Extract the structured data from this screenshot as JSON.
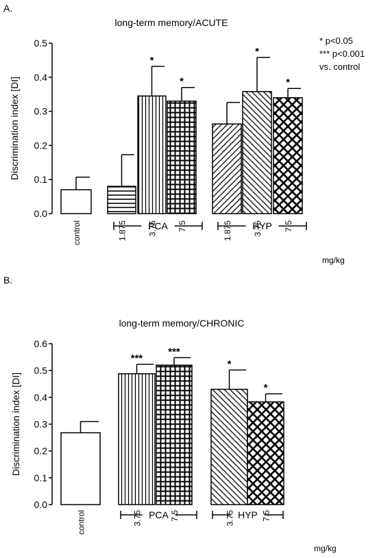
{
  "chart_data": [
    {
      "panel_label": "A.",
      "type": "bar",
      "title": "long-term memory/ACUTE",
      "ylabel": "Discrimination index [DI]",
      "ylim": [
        0,
        0.5
      ],
      "yticks": [
        "0.0",
        "0.1",
        "0.2",
        "0.3",
        "0.4",
        "0.5"
      ],
      "xunit": "mg/kg",
      "categories": [
        "control",
        "1.875",
        "3.75",
        "7.5",
        "1.875",
        "3.75",
        "7.5"
      ],
      "values": [
        0.07,
        0.08,
        0.345,
        0.33,
        0.263,
        0.358,
        0.34
      ],
      "errors": [
        0.037,
        0.093,
        0.087,
        0.04,
        0.063,
        0.1,
        0.027
      ],
      "significance": [
        "",
        "",
        "*",
        "*",
        "",
        "*",
        "*"
      ],
      "patterns": [
        "none",
        "hlines",
        "vlines",
        "grid",
        "diagback",
        "diagfwd",
        "crosshatch"
      ],
      "groups": [
        {
          "label": "PCA",
          "from": 1,
          "to": 3
        },
        {
          "label": "HYP",
          "from": 4,
          "to": 6
        }
      ],
      "legend": [
        "* p<0.05",
        "*** p<0.001",
        "vs. control"
      ]
    },
    {
      "panel_label": "B.",
      "type": "bar",
      "title": "long-term memory/CHRONIC",
      "ylabel": "Discrimination index [DI]",
      "ylim": [
        0,
        0.6
      ],
      "yticks": [
        "0.0",
        "0.1",
        "0.2",
        "0.3",
        "0.4",
        "0.5",
        "0.6"
      ],
      "xunit": "mg/kg",
      "categories": [
        "control",
        "3.75",
        "7.5",
        "3.75",
        "7.5"
      ],
      "values": [
        0.268,
        0.488,
        0.52,
        0.43,
        0.383
      ],
      "errors": [
        0.042,
        0.035,
        0.028,
        0.072,
        0.03
      ],
      "significance": [
        "",
        "***",
        "***",
        "*",
        "*"
      ],
      "patterns": [
        "none",
        "vlines",
        "grid",
        "diagfwd",
        "crosshatch"
      ],
      "groups": [
        {
          "label": "PCA",
          "from": 1,
          "to": 2
        },
        {
          "label": "HYP",
          "from": 3,
          "to": 4
        }
      ],
      "legend": []
    }
  ]
}
